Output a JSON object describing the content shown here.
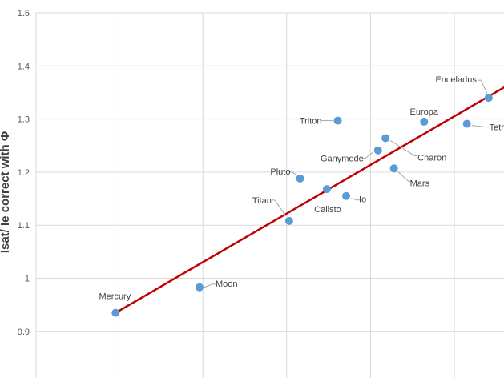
{
  "chart_data": {
    "type": "scatter",
    "title": "",
    "xlabel": "",
    "ylabel": "Isat/ Ie correct with Φ",
    "ylim": [
      0.9,
      1.5
    ],
    "yticks": [
      "0.9",
      "1",
      "1.1",
      "1.2",
      "1.3",
      "1.4",
      "1.5"
    ],
    "grid": true,
    "marker_color": "#5b9bd5",
    "trendline_color": "#c00000",
    "points": [
      {
        "label": "Mercury",
        "x": 0.95,
        "y": 0.935
      },
      {
        "label": "Moon",
        "x": 1.95,
        "y": 0.983
      },
      {
        "label": "Titan",
        "x": 3.02,
        "y": 1.108
      },
      {
        "label": "Pluto",
        "x": 3.15,
        "y": 1.188
      },
      {
        "label": "Calisto",
        "x": 3.47,
        "y": 1.168
      },
      {
        "label": "Triton",
        "x": 3.6,
        "y": 1.297
      },
      {
        "label": "Io",
        "x": 3.7,
        "y": 1.155
      },
      {
        "label": "Ganymede",
        "x": 4.08,
        "y": 1.241
      },
      {
        "label": "Charon",
        "x": 4.17,
        "y": 1.264
      },
      {
        "label": "Mars",
        "x": 4.27,
        "y": 1.207
      },
      {
        "label": "Europa",
        "x": 4.63,
        "y": 1.295
      },
      {
        "label": "Tethys",
        "x": 5.14,
        "y": 1.291
      },
      {
        "label": "Enceladus",
        "x": 5.4,
        "y": 1.34
      }
    ],
    "trendline": {
      "x": [
        0.95,
        5.6
      ],
      "y": [
        0.935,
        1.361
      ]
    }
  }
}
